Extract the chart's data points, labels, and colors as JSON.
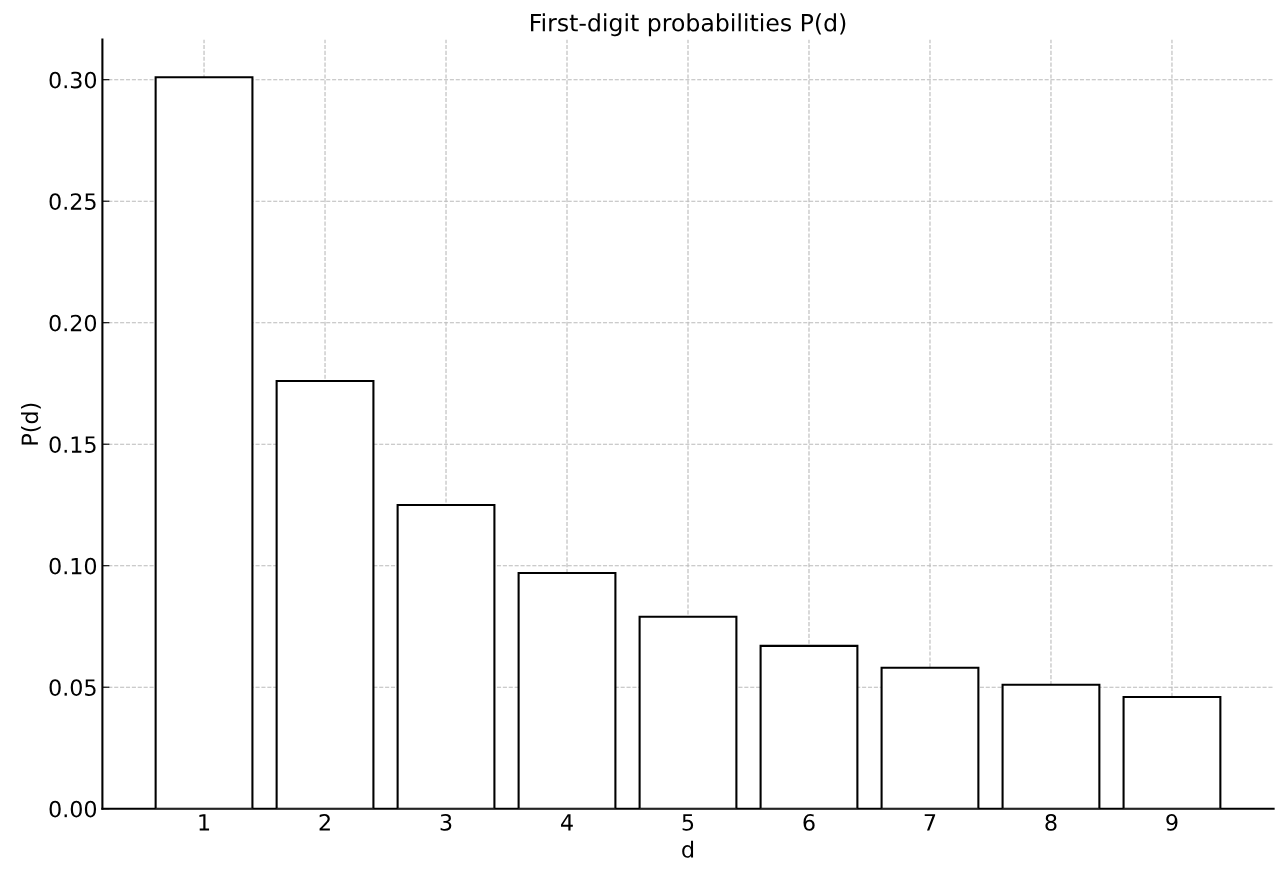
{
  "chart_data": {
    "type": "bar",
    "title": "First-digit probabilities P(d)",
    "xlabel": "d",
    "ylabel": "P(d)",
    "categories": [
      "1",
      "2",
      "3",
      "4",
      "5",
      "6",
      "7",
      "8",
      "9"
    ],
    "values": [
      0.301,
      0.176,
      0.125,
      0.097,
      0.079,
      0.067,
      0.058,
      0.051,
      0.046
    ],
    "color": "#ffffff",
    "ylim": [
      0,
      0.3165
    ],
    "yticks": [
      {
        "value": 0,
        "label": "0.00"
      },
      {
        "value": 0.05,
        "label": "0.05"
      },
      {
        "value": 0.1,
        "label": "0.10"
      },
      {
        "value": 0.15,
        "label": "0.15"
      },
      {
        "value": 0.2,
        "label": "0.20"
      },
      {
        "value": 0.25,
        "label": "0.25"
      },
      {
        "value": 0.3,
        "label": "0.30"
      }
    ],
    "grid": true,
    "legend": false
  }
}
